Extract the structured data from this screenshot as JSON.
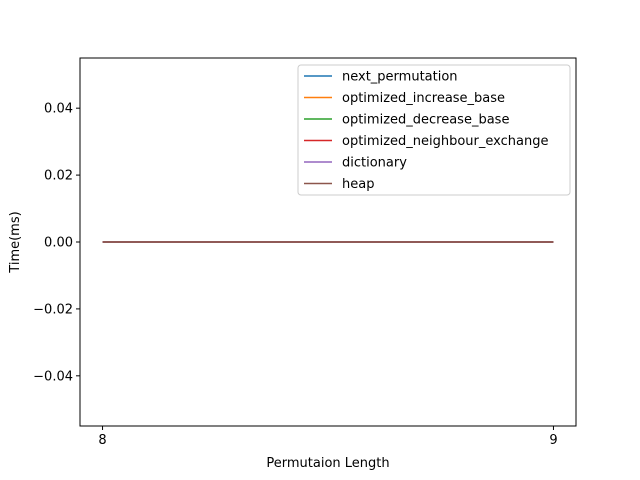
{
  "chart_data": {
    "type": "line",
    "xlabel": "Permutaion Length",
    "ylabel": "Time(ms)",
    "x": [
      8,
      9
    ],
    "xlim": [
      7.95,
      9.05
    ],
    "ylim": [
      -0.055,
      0.055
    ],
    "xticks": [
      8,
      9
    ],
    "xtick_labels": [
      "8",
      "9"
    ],
    "yticks": [
      -0.04,
      -0.02,
      0.0,
      0.02,
      0.04
    ],
    "ytick_labels": [
      "−0.04",
      "−0.02",
      "0.00",
      "0.02",
      "0.04"
    ],
    "grid": false,
    "legend_position": "top-right",
    "series": [
      {
        "name": "next_permutation",
        "values": [
          0,
          0
        ],
        "color": "#1f77b4"
      },
      {
        "name": "optimized_increase_base",
        "values": [
          0,
          0
        ],
        "color": "#ff7f0e"
      },
      {
        "name": "optimized_decrease_base",
        "values": [
          0,
          0
        ],
        "color": "#2ca02c"
      },
      {
        "name": "optimized_neighbour_exchange",
        "values": [
          0,
          0
        ],
        "color": "#d62728"
      },
      {
        "name": "dictionary",
        "values": [
          0,
          0
        ],
        "color": "#9467bd"
      },
      {
        "name": "heap",
        "values": [
          0,
          0
        ],
        "color": "#8c564b"
      }
    ]
  }
}
